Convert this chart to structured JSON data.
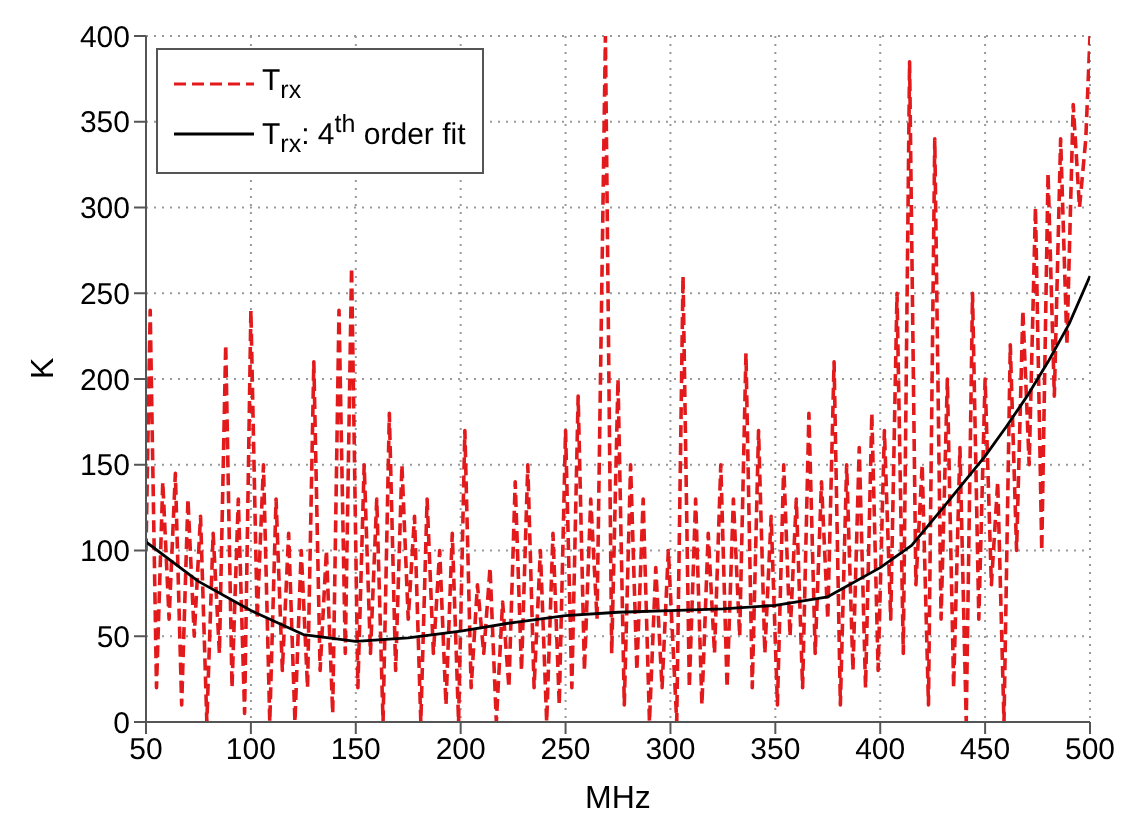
{
  "chart_data": {
    "type": "line",
    "xlabel": "MHz",
    "ylabel": "K",
    "xlim": [
      50,
      500
    ],
    "ylim": [
      0,
      400
    ],
    "xticks": [
      50,
      100,
      150,
      200,
      250,
      300,
      350,
      400,
      450,
      500
    ],
    "yticks": [
      0,
      50,
      100,
      150,
      200,
      250,
      300,
      350,
      400
    ],
    "grid": true,
    "legend": "top left",
    "marker": "none",
    "series": [
      {
        "name": "T$_{rx}$",
        "color": "#e31a1c",
        "line_style": "dashed",
        "x": [
          50,
          52,
          55,
          58,
          61,
          64,
          67,
          70,
          73,
          76,
          79,
          82,
          85,
          88,
          91,
          94,
          97,
          100,
          103,
          106,
          109,
          112,
          115,
          118,
          121,
          124,
          127,
          130,
          133,
          136,
          139,
          142,
          145,
          148,
          151,
          154,
          157,
          160,
          163,
          166,
          169,
          172,
          175,
          178,
          181,
          184,
          187,
          190,
          193,
          196,
          199,
          202,
          205,
          208,
          211,
          214,
          217,
          220,
          223,
          226,
          229,
          232,
          235,
          238,
          241,
          244,
          247,
          250,
          253,
          256,
          259,
          262,
          265,
          269,
          272,
          275,
          278,
          281,
          284,
          287,
          290,
          293,
          296,
          299,
          303,
          306,
          309,
          312,
          315,
          318,
          321,
          324,
          327,
          330,
          333,
          336,
          339,
          342,
          345,
          348,
          351,
          354,
          357,
          360,
          363,
          366,
          369,
          372,
          375,
          378,
          381,
          384,
          387,
          390,
          393,
          396,
          399,
          402,
          405,
          408,
          411,
          414,
          417,
          420,
          423,
          426,
          429,
          432,
          435,
          438,
          441,
          444,
          447,
          450,
          453,
          456,
          459,
          462,
          465,
          468,
          471,
          474,
          477,
          480,
          483,
          486,
          489,
          492,
          495,
          498,
          500
        ],
        "values": [
          100,
          240,
          20,
          140,
          60,
          145,
          10,
          130,
          50,
          120,
          0,
          110,
          40,
          220,
          20,
          130,
          5,
          240,
          60,
          150,
          0,
          130,
          30,
          110,
          0,
          100,
          20,
          210,
          30,
          100,
          5,
          240,
          40,
          265,
          20,
          150,
          40,
          130,
          0,
          180,
          30,
          150,
          60,
          120,
          0,
          130,
          40,
          100,
          10,
          110,
          0,
          170,
          20,
          80,
          40,
          90,
          0,
          70,
          20,
          140,
          30,
          150,
          20,
          100,
          0,
          110,
          10,
          170,
          20,
          190,
          30,
          130,
          60,
          400,
          40,
          200,
          10,
          150,
          30,
          130,
          0,
          90,
          20,
          100,
          0,
          260,
          20,
          130,
          10,
          110,
          40,
          150,
          20,
          130,
          50,
          215,
          20,
          170,
          40,
          120,
          10,
          150,
          50,
          130,
          20,
          180,
          40,
          140,
          60,
          210,
          10,
          150,
          30,
          160,
          20,
          180,
          30,
          170,
          60,
          250,
          40,
          385,
          80,
          150,
          10,
          340,
          60,
          200,
          20,
          160,
          0,
          250,
          60,
          200,
          80,
          140,
          0,
          220,
          100,
          240,
          150,
          300,
          100,
          320,
          190,
          340,
          220,
          360,
          300,
          340,
          400
        ]
      },
      {
        "name": "T$_{rx}$: 4$^{th}$ order fit",
        "color": "#000000",
        "line_style": "solid",
        "x": [
          50,
          75,
          100,
          125,
          150,
          175,
          200,
          225,
          250,
          275,
          300,
          325,
          350,
          375,
          400,
          415,
          430,
          440,
          450,
          460,
          470,
          480,
          490,
          500
        ],
        "values": [
          105,
          82,
          65,
          51,
          47,
          49,
          53,
          58,
          62,
          64,
          65,
          66,
          68,
          73,
          90,
          103,
          125,
          140,
          155,
          172,
          190,
          210,
          232,
          260
        ]
      }
    ]
  }
}
